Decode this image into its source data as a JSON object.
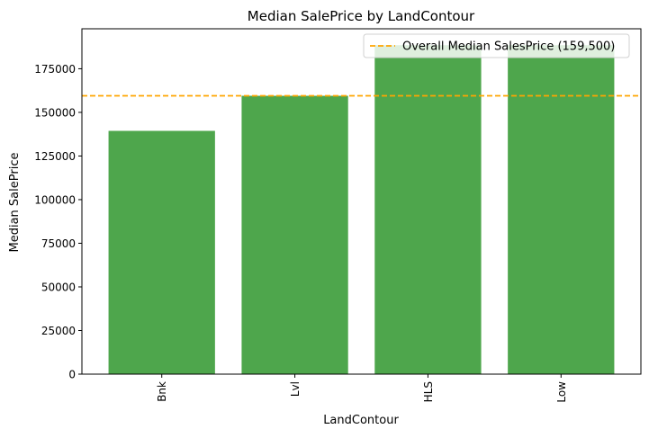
{
  "chart_data": {
    "type": "bar",
    "title": "Median SalePrice by LandContour",
    "xlabel": "LandContour",
    "ylabel": "Median SalePrice",
    "categories": [
      "Bnk",
      "Lvl",
      "HLS",
      "Low"
    ],
    "values": [
      139400,
      159500,
      188500,
      188500
    ],
    "ylim": [
      0,
      197900
    ],
    "yticks": [
      0,
      25000,
      50000,
      75000,
      100000,
      125000,
      150000,
      175000
    ],
    "bar_color": "#4ea64c",
    "reference_line": {
      "value": 159500,
      "label": "Overall Median SalesPrice (159,500)",
      "color": "#ffa500",
      "style": "dashed"
    },
    "legend_position": "top-right",
    "grid": false,
    "x_tick_rotation": "vertical"
  }
}
